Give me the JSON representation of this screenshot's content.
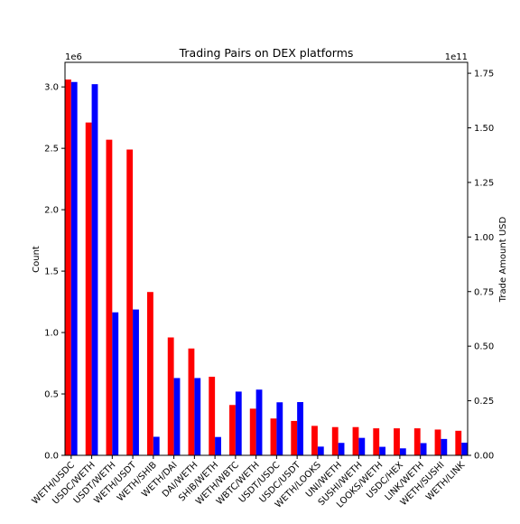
{
  "chart_data": {
    "type": "bar",
    "title": "Trading Pairs on DEX platforms",
    "ylabel": "Count",
    "y2label": "Trade Amount USD",
    "ylim": [
      0,
      3200000
    ],
    "y2lim": [
      0,
      180000000000
    ],
    "yticks": [
      0.0,
      0.5,
      1.0,
      1.5,
      2.0,
      2.5,
      3.0
    ],
    "y2ticks": [
      0.0,
      0.25,
      0.5,
      0.75,
      1.0,
      1.25,
      1.5,
      1.75
    ],
    "y_offset_label": "1e6",
    "y2_offset_label": "1e11",
    "grid": false,
    "categories": [
      "WETH/USDC",
      "USDC/WETH",
      "USDT/WETH",
      "WETH/USDT",
      "WETH/SHIB",
      "WETH/DAI",
      "DAI/WETH",
      "SHIB/WETH",
      "WETH/WBTC",
      "WBTC/WETH",
      "USDT/USDC",
      "USDC/USDT",
      "WETH/LOOKS",
      "UNI/WETH",
      "SUSHI/WETH",
      "LOOKS/WETH",
      "USDC/HEX",
      "LINK/WETH",
      "WETH/SUSHI",
      "WETH/LINK"
    ],
    "series": [
      {
        "color": "#ff0000",
        "axis": "left",
        "values": [
          3060000,
          2710000,
          2570000,
          2490000,
          1330000,
          960000,
          870000,
          640000,
          410000,
          380000,
          300000,
          280000,
          240000,
          230000,
          230000,
          220000,
          220000,
          220000,
          210000,
          200000
        ]
      },
      {
        "color": "#0000ff",
        "axis": "right",
        "values": [
          171000000000,
          170000000000,
          65500000000,
          66800000000,
          8500000000,
          35400000000,
          35400000000,
          8400000000,
          29200000000,
          30100000000,
          24300000000,
          24400000000,
          4000000000,
          5700000000,
          8000000000,
          3900000000,
          3200000000,
          5600000000,
          7500000000,
          5800000000
        ]
      }
    ]
  }
}
